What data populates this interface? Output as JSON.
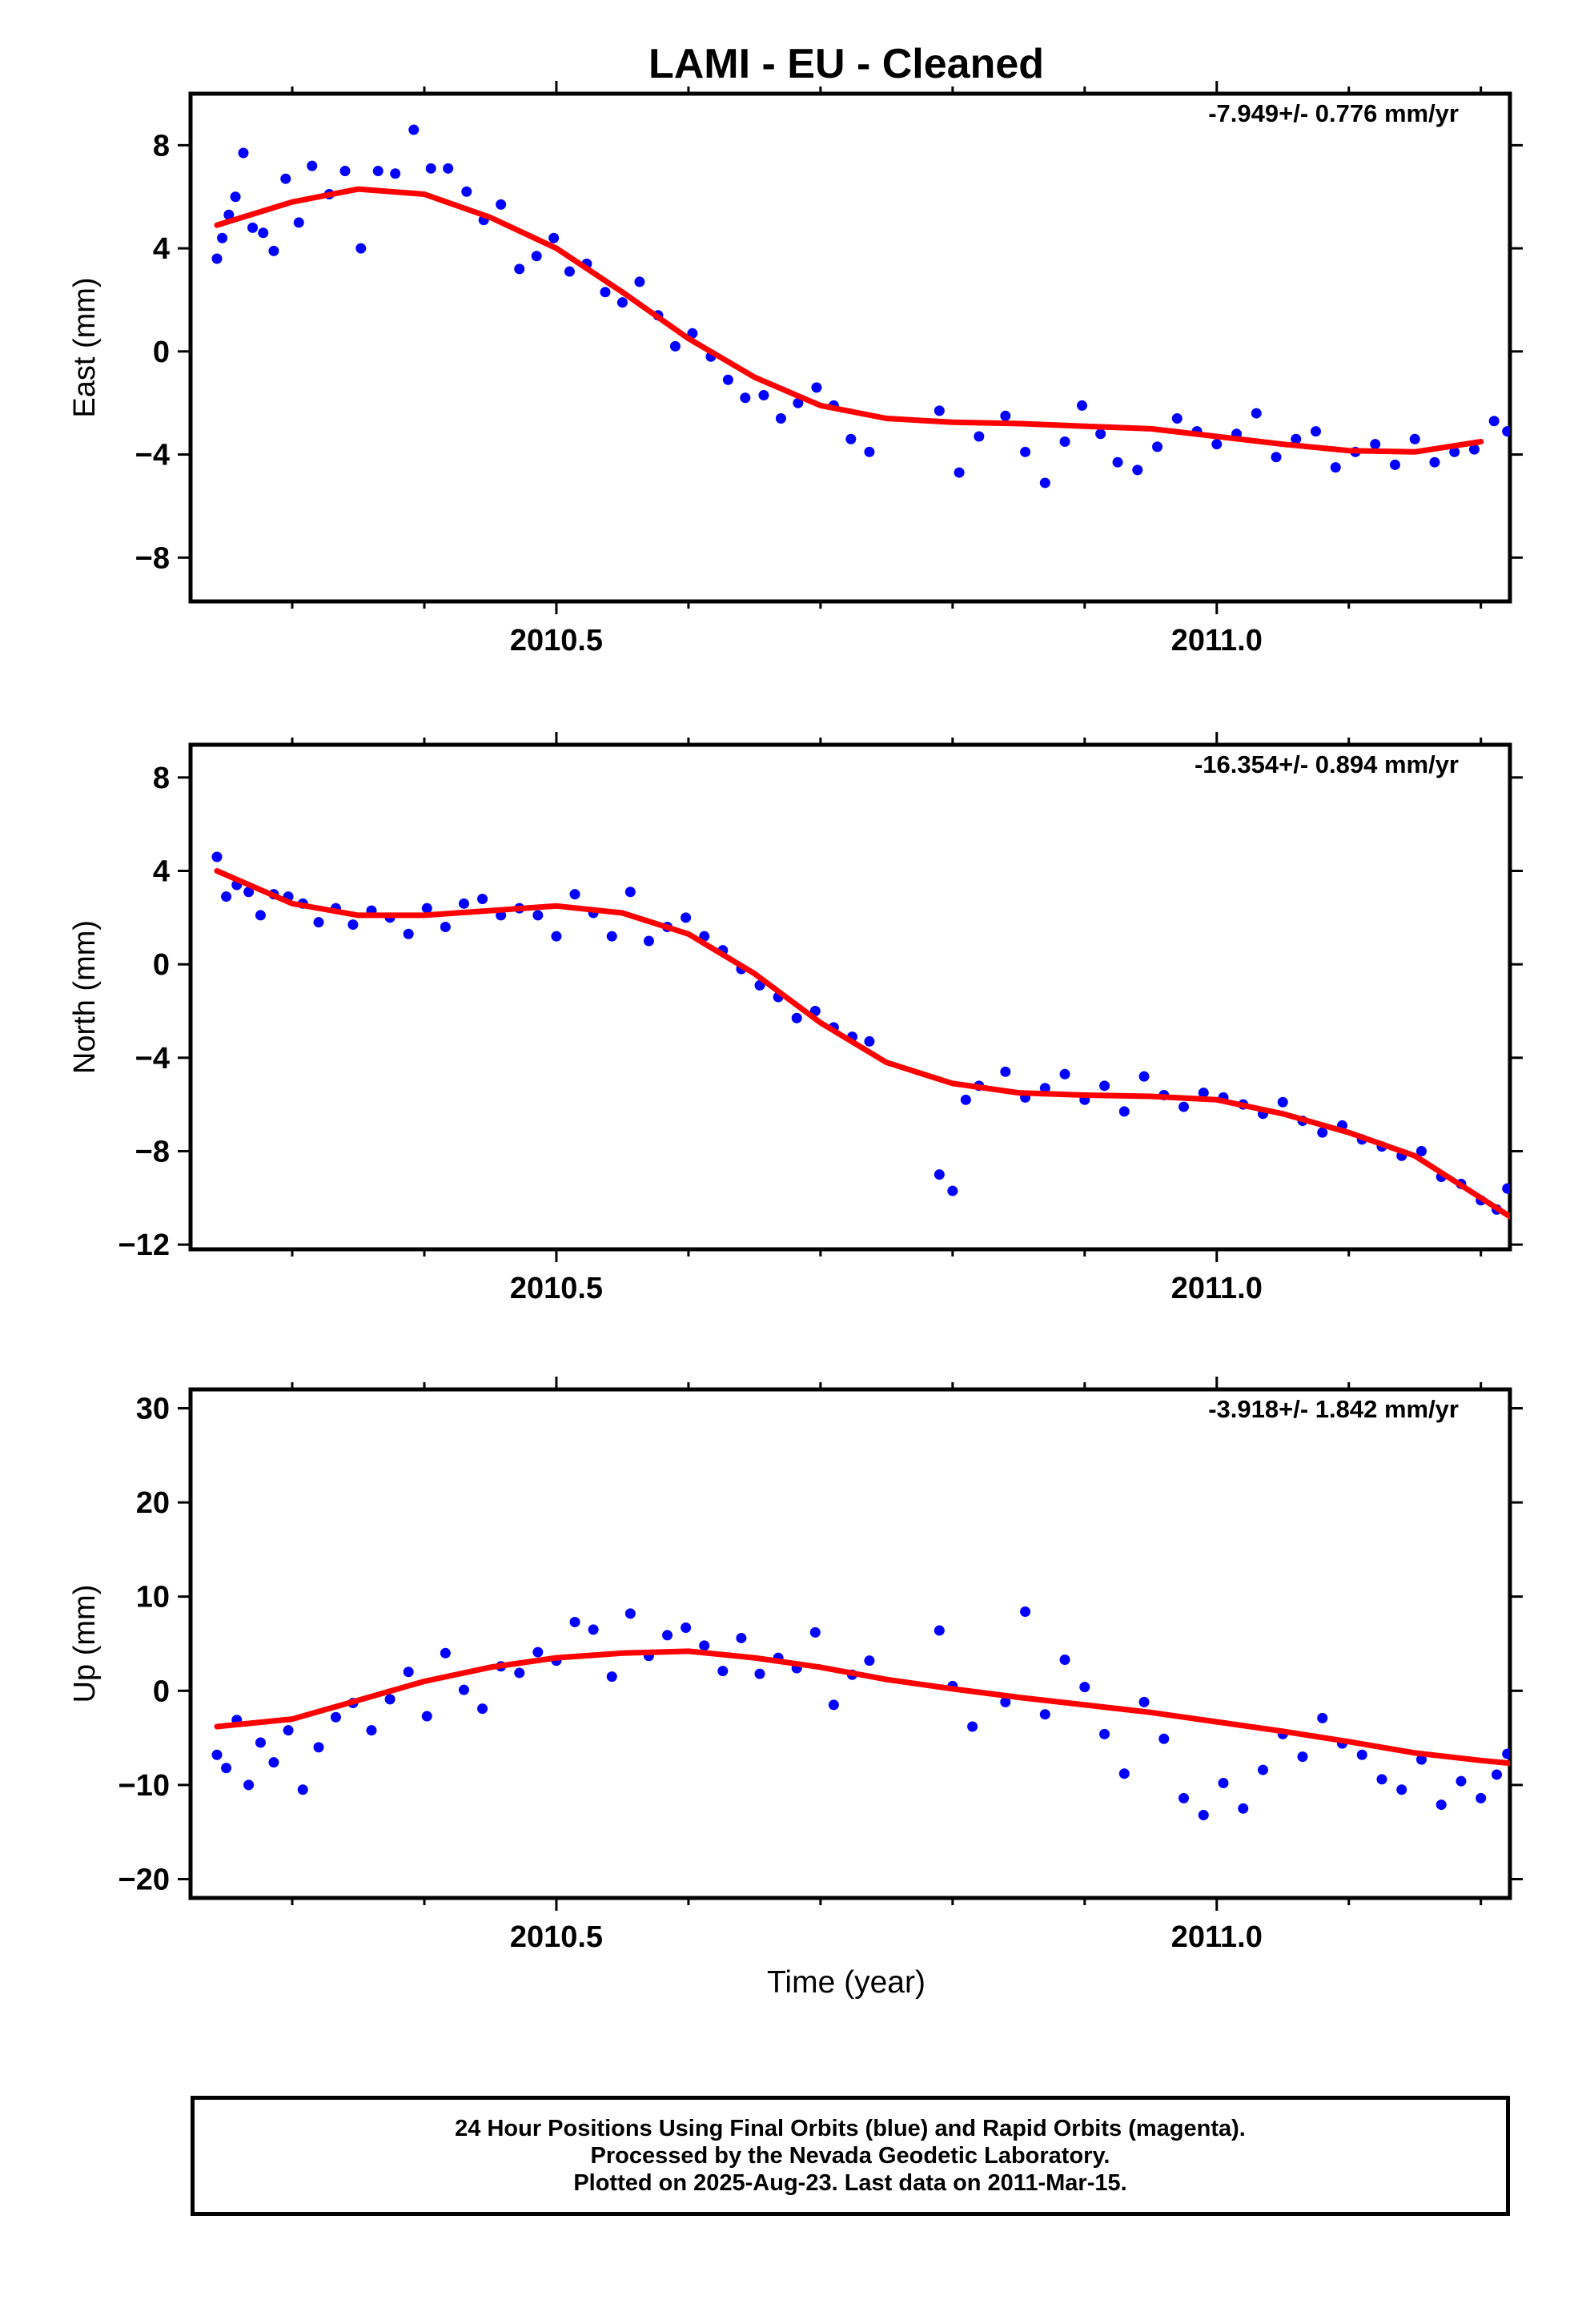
{
  "figure": {
    "title": "LAMI  - EU - Cleaned",
    "xlabel": "Time (year)"
  },
  "footer": {
    "lines": [
      "24 Hour Positions Using Final Orbits (blue) and Rapid Orbits (magenta).",
      "Processed by the Nevada Geodetic Laboratory.",
      "Plotted on 2025-Aug-23. Last data on 2011-Mar-15."
    ]
  },
  "colors": {
    "points": "#0000ff",
    "fit": "#ff0000",
    "axes": "#000000"
  },
  "chart_data": [
    {
      "type": "scatter",
      "ylabel": "East (mm)",
      "annotation": "-7.949+/- 0.776 mm/yr",
      "xlim": [
        2010.223,
        2011.222
      ],
      "ylim": [
        -9.7,
        10
      ],
      "xticks": [
        2010.5,
        2011.0
      ],
      "xticklabels": [
        "2010.5",
        "2011.0"
      ],
      "yticks": [
        -8,
        -4,
        0,
        4,
        8
      ],
      "yticklabels": [
        "−8",
        "−4",
        "0",
        "4",
        "8"
      ],
      "fit": {
        "x": [
          2010.243,
          2010.3,
          2010.35,
          2010.4,
          2010.45,
          2010.5,
          2010.55,
          2010.6,
          2010.65,
          2010.7,
          2010.75,
          2010.8,
          2010.85,
          2010.9,
          2010.95,
          2011.0,
          2011.05,
          2011.1,
          2011.15,
          2011.2
        ],
        "y": [
          4.9,
          5.8,
          6.3,
          6.1,
          5.2,
          4.0,
          2.3,
          0.5,
          -1.0,
          -2.1,
          -2.6,
          -2.75,
          -2.8,
          -2.9,
          -3.0,
          -3.3,
          -3.6,
          -3.85,
          -3.9,
          -3.5
        ]
      },
      "series": [
        {
          "name": "Final Orbits",
          "x": [
            2010.243,
            2010.247,
            2010.252,
            2010.257,
            2010.263,
            2010.27,
            2010.278,
            2010.286,
            2010.295,
            2010.305,
            2010.315,
            2010.328,
            2010.34,
            2010.352,
            2010.365,
            2010.378,
            2010.392,
            2010.405,
            2010.418,
            2010.432,
            2010.445,
            2010.458,
            2010.472,
            2010.485,
            2010.498,
            2010.51,
            2010.523,
            2010.537,
            2010.55,
            2010.563,
            2010.577,
            2010.59,
            2010.603,
            2010.617,
            2010.63,
            2010.643,
            2010.657,
            2010.67,
            2010.683,
            2010.697,
            2010.71,
            2010.723,
            2010.737,
            2010.79,
            2010.805,
            2010.82,
            2010.84,
            2010.855,
            2010.87,
            2010.885,
            2010.898,
            2010.912,
            2010.925,
            2010.94,
            2010.955,
            2010.97,
            2010.985,
            2011.0,
            2011.015,
            2011.03,
            2011.045,
            2011.06,
            2011.075,
            2011.09,
            2011.105,
            2011.12,
            2011.135,
            2011.15,
            2011.165,
            2011.18,
            2011.195,
            2011.21,
            2011.22
          ],
          "y": [
            3.6,
            4.4,
            5.3,
            6.0,
            7.7,
            4.8,
            4.6,
            3.9,
            6.7,
            5.0,
            7.2,
            6.1,
            7.0,
            4.0,
            7.0,
            6.9,
            8.6,
            7.1,
            7.1,
            6.2,
            5.1,
            5.7,
            3.2,
            3.7,
            4.4,
            3.1,
            3.4,
            2.3,
            1.9,
            2.7,
            1.4,
            0.2,
            0.7,
            -0.2,
            -1.1,
            -1.8,
            -1.7,
            -2.6,
            -2.0,
            -1.4,
            -2.1,
            -3.4,
            -3.9,
            -2.3,
            -4.7,
            -3.3,
            -2.5,
            -3.9,
            -5.1,
            -3.5,
            -2.1,
            -3.2,
            -4.3,
            -4.6,
            -3.7,
            -2.6,
            -3.1,
            -3.6,
            -3.2,
            -2.4,
            -4.1,
            -3.4,
            -3.1,
            -4.5,
            -3.9,
            -3.6,
            -4.4,
            -3.4,
            -4.3,
            -3.9,
            -3.8,
            -2.7,
            -3.1
          ]
        }
      ]
    },
    {
      "type": "scatter",
      "ylabel": "North (mm)",
      "annotation": "-16.354+/- 0.894 mm/yr",
      "xlim": [
        2010.223,
        2011.222
      ],
      "ylim": [
        -12.2,
        9.4
      ],
      "xticks": [
        2010.5,
        2011.0
      ],
      "xticklabels": [
        "2010.5",
        "2011.0"
      ],
      "yticks": [
        -12,
        -8,
        -4,
        0,
        4,
        8
      ],
      "yticklabels": [
        "−12",
        "−8",
        "−4",
        "0",
        "4",
        "8"
      ],
      "fit": {
        "x": [
          2010.243,
          2010.3,
          2010.35,
          2010.4,
          2010.45,
          2010.5,
          2010.55,
          2010.6,
          2010.65,
          2010.7,
          2010.75,
          2010.8,
          2010.85,
          2010.9,
          2010.95,
          2011.0,
          2011.05,
          2011.1,
          2011.15,
          2011.2,
          2011.222
        ],
        "y": [
          4.0,
          2.6,
          2.1,
          2.1,
          2.3,
          2.5,
          2.2,
          1.3,
          -0.4,
          -2.5,
          -4.2,
          -5.1,
          -5.5,
          -5.6,
          -5.65,
          -5.8,
          -6.4,
          -7.2,
          -8.2,
          -10.0,
          -10.8
        ]
      },
      "series": [
        {
          "name": "Final Orbits",
          "x": [
            2010.243,
            2010.25,
            2010.258,
            2010.267,
            2010.276,
            2010.286,
            2010.297,
            2010.308,
            2010.32,
            2010.333,
            2010.346,
            2010.36,
            2010.374,
            2010.388,
            2010.402,
            2010.416,
            2010.43,
            2010.444,
            2010.458,
            2010.472,
            2010.486,
            2010.5,
            2010.514,
            2010.528,
            2010.542,
            2010.556,
            2010.57,
            2010.584,
            2010.598,
            2010.612,
            2010.626,
            2010.64,
            2010.654,
            2010.668,
            2010.682,
            2010.696,
            2010.71,
            2010.724,
            2010.737,
            2010.79,
            2010.8,
            2010.81,
            2010.82,
            2010.84,
            2010.855,
            2010.87,
            2010.885,
            2010.9,
            2010.915,
            2010.93,
            2010.945,
            2010.96,
            2010.975,
            2010.99,
            2011.005,
            2011.02,
            2011.035,
            2011.05,
            2011.065,
            2011.08,
            2011.095,
            2011.11,
            2011.125,
            2011.14,
            2011.155,
            2011.17,
            2011.185,
            2011.2,
            2011.212,
            2011.22
          ],
          "y": [
            4.6,
            2.9,
            3.4,
            3.1,
            2.1,
            3.0,
            2.9,
            2.6,
            1.8,
            2.4,
            1.7,
            2.3,
            2.0,
            1.3,
            2.4,
            1.6,
            2.6,
            2.8,
            2.1,
            2.4,
            2.1,
            1.2,
            3.0,
            2.2,
            1.2,
            3.1,
            1.0,
            1.6,
            2.0,
            1.2,
            0.6,
            -0.2,
            -0.9,
            -1.4,
            -2.3,
            -2.0,
            -2.7,
            -3.1,
            -3.3,
            -9.0,
            -9.7,
            -5.8,
            -5.2,
            -4.6,
            -5.7,
            -5.3,
            -4.7,
            -5.8,
            -5.2,
            -6.3,
            -4.8,
            -5.6,
            -6.1,
            -5.5,
            -5.7,
            -6.0,
            -6.4,
            -5.9,
            -6.7,
            -7.2,
            -6.9,
            -7.5,
            -7.8,
            -8.2,
            -8.0,
            -9.1,
            -9.4,
            -10.1,
            -10.5,
            -9.6
          ]
        }
      ]
    },
    {
      "type": "scatter",
      "ylabel": "Up (mm)",
      "annotation": "-3.918+/- 1.842 mm/yr",
      "xlim": [
        2010.223,
        2011.222
      ],
      "ylim": [
        -22,
        32
      ],
      "xticks": [
        2010.5,
        2011.0
      ],
      "xticklabels": [
        "2010.5",
        "2011.0"
      ],
      "yticks": [
        -20,
        -10,
        0,
        10,
        20,
        30
      ],
      "yticklabels": [
        "−20",
        "−10",
        "0",
        "10",
        "20",
        "30"
      ],
      "fit": {
        "x": [
          2010.243,
          2010.3,
          2010.35,
          2010.4,
          2010.45,
          2010.5,
          2010.55,
          2010.6,
          2010.65,
          2010.7,
          2010.75,
          2010.8,
          2010.85,
          2010.9,
          2010.95,
          2011.0,
          2011.05,
          2011.1,
          2011.15,
          2011.2,
          2011.222
        ],
        "y": [
          -3.8,
          -3.0,
          -1.0,
          1.0,
          2.5,
          3.5,
          4.0,
          4.2,
          3.5,
          2.5,
          1.2,
          0.2,
          -0.7,
          -1.5,
          -2.3,
          -3.3,
          -4.3,
          -5.4,
          -6.6,
          -7.4,
          -7.7
        ]
      },
      "series": [
        {
          "name": "Final Orbits",
          "x": [
            2010.243,
            2010.25,
            2010.258,
            2010.267,
            2010.276,
            2010.286,
            2010.297,
            2010.308,
            2010.32,
            2010.333,
            2010.346,
            2010.36,
            2010.374,
            2010.388,
            2010.402,
            2010.416,
            2010.43,
            2010.444,
            2010.458,
            2010.472,
            2010.486,
            2010.5,
            2010.514,
            2010.528,
            2010.542,
            2010.556,
            2010.57,
            2010.584,
            2010.598,
            2010.612,
            2010.626,
            2010.64,
            2010.654,
            2010.668,
            2010.682,
            2010.696,
            2010.71,
            2010.724,
            2010.737,
            2010.79,
            2010.8,
            2010.815,
            2010.84,
            2010.855,
            2010.87,
            2010.885,
            2010.9,
            2010.915,
            2010.93,
            2010.945,
            2010.96,
            2010.975,
            2010.99,
            2011.005,
            2011.02,
            2011.035,
            2011.05,
            2011.065,
            2011.08,
            2011.095,
            2011.11,
            2011.125,
            2011.14,
            2011.155,
            2011.17,
            2011.185,
            2011.2,
            2011.212,
            2011.22
          ],
          "y": [
            -6.8,
            -8.2,
            -3.1,
            -10.0,
            -5.5,
            -7.6,
            -4.2,
            -10.5,
            -6.0,
            -2.8,
            -1.3,
            -4.2,
            -0.9,
            2.0,
            -2.7,
            4.0,
            0.1,
            -1.9,
            2.6,
            1.9,
            4.1,
            3.2,
            7.3,
            6.5,
            1.5,
            8.2,
            3.7,
            5.9,
            6.7,
            4.8,
            2.1,
            5.6,
            1.8,
            3.5,
            2.4,
            6.2,
            -1.5,
            1.7,
            3.2,
            6.4,
            0.5,
            -3.8,
            -1.2,
            8.4,
            -2.5,
            3.3,
            0.4,
            -4.6,
            -8.8,
            -1.2,
            -5.1,
            -11.4,
            -13.2,
            -9.8,
            -12.5,
            -8.4,
            -4.6,
            -7.0,
            -2.9,
            -5.6,
            -6.8,
            -9.4,
            -10.5,
            -7.3,
            -12.1,
            -9.6,
            -11.4,
            -8.9,
            -6.7
          ]
        }
      ]
    }
  ]
}
